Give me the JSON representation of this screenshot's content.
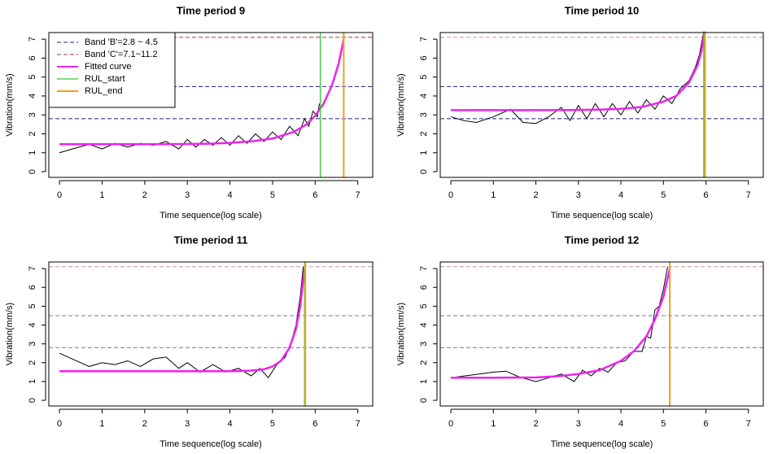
{
  "chart_data": [
    {
      "type": "line",
      "title": "Time period 9",
      "xlabel": "Time sequence(log scale)",
      "ylabel": "Vibration(mm/s)",
      "xlim": [
        -0.25,
        7.35
      ],
      "ylim": [
        -0.3,
        7.35
      ],
      "xticks": [
        0,
        1,
        2,
        3,
        4,
        5,
        6,
        7
      ],
      "yticks": [
        0,
        1,
        2,
        3,
        4,
        5,
        6,
        7
      ],
      "legend": "top-left",
      "series": [
        {
          "color": "#000000",
          "x": [
            0,
            0.3,
            0.7,
            1,
            1.3,
            1.6,
            1.9,
            2.2,
            2.5,
            2.8,
            3.0,
            3.2,
            3.4,
            3.6,
            3.8,
            4.0,
            4.2,
            4.4,
            4.6,
            4.8,
            5.0,
            5.2,
            5.4,
            5.6,
            5.75,
            5.85,
            5.95,
            6.05,
            6.1
          ],
          "values": [
            1.0,
            1.2,
            1.45,
            1.2,
            1.5,
            1.3,
            1.5,
            1.4,
            1.6,
            1.2,
            1.7,
            1.3,
            1.7,
            1.4,
            1.8,
            1.4,
            1.9,
            1.5,
            2.0,
            1.6,
            2.1,
            1.7,
            2.4,
            1.9,
            2.8,
            2.4,
            3.2,
            2.9,
            3.6
          ]
        },
        {
          "name": "Fitted curve",
          "color": "#ee22ee",
          "x": [
            0,
            1,
            2,
            3,
            3.5,
            4,
            4.5,
            5,
            5.5,
            5.8,
            6,
            6.2,
            6.4,
            6.55,
            6.67
          ],
          "values": [
            1.45,
            1.45,
            1.45,
            1.46,
            1.48,
            1.52,
            1.6,
            1.75,
            2.1,
            2.5,
            2.95,
            3.6,
            4.6,
            5.7,
            7.0
          ]
        }
      ],
      "bands": [
        {
          "name": "Band 'B'=2.8 ~ 4.5",
          "color": "#1f1f7a",
          "values": [
            2.8,
            4.5
          ]
        },
        {
          "name": "Band 'C'=7.1~11.2",
          "color": "#b03030",
          "values": [
            7.1
          ]
        }
      ],
      "vlines": [
        {
          "name": "RUL_start",
          "color": "#33cc33",
          "value": 6.12
        },
        {
          "name": "RUL_end",
          "color": "#f0a020",
          "value": 6.67
        }
      ]
    },
    {
      "type": "line",
      "title": "Time period 10",
      "xlabel": "Time sequence(log scale)",
      "ylabel": "Vibration(mm/s)",
      "xlim": [
        -0.25,
        7.35
      ],
      "ylim": [
        -0.3,
        7.35
      ],
      "xticks": [
        0,
        1,
        2,
        3,
        4,
        5,
        6,
        7
      ],
      "yticks": [
        0,
        1,
        2,
        3,
        4,
        5,
        6,
        7
      ],
      "series": [
        {
          "color": "#000000",
          "x": [
            0,
            0.3,
            0.6,
            1,
            1.4,
            1.7,
            2,
            2.3,
            2.6,
            2.8,
            3,
            3.2,
            3.4,
            3.6,
            3.8,
            4,
            4.2,
            4.4,
            4.6,
            4.8,
            5,
            5.2,
            5.4,
            5.6,
            5.75,
            5.85,
            5.95
          ],
          "values": [
            2.9,
            2.7,
            2.6,
            2.9,
            3.3,
            2.6,
            2.55,
            2.9,
            3.4,
            2.7,
            3.5,
            2.8,
            3.6,
            2.9,
            3.6,
            3.0,
            3.7,
            3.1,
            3.8,
            3.3,
            4.0,
            3.6,
            4.4,
            4.8,
            5.5,
            6.2,
            7.4
          ]
        },
        {
          "color": "#ee22ee",
          "x": [
            0,
            1,
            2,
            3,
            3.5,
            4,
            4.5,
            5,
            5.3,
            5.6,
            5.8,
            5.9,
            5.97
          ],
          "values": [
            3.25,
            3.25,
            3.25,
            3.26,
            3.28,
            3.32,
            3.42,
            3.7,
            4.0,
            4.7,
            5.6,
            6.4,
            7.4
          ]
        }
      ],
      "bands": [
        {
          "color": "#1f1f7a",
          "values": [
            2.8,
            4.5
          ]
        },
        {
          "color": "#d09090",
          "values": [
            7.1
          ]
        }
      ],
      "vlines": [
        {
          "color": "#33cc33",
          "value": 5.95
        },
        {
          "color": "#f0a020",
          "value": 5.98
        }
      ]
    },
    {
      "type": "line",
      "title": "Time period 11",
      "xlabel": "Time sequence(log scale)",
      "ylabel": "Vibration(mm/s)",
      "xlim": [
        -0.25,
        7.35
      ],
      "ylim": [
        -0.3,
        7.35
      ],
      "xticks": [
        0,
        1,
        2,
        3,
        4,
        5,
        6,
        7
      ],
      "yticks": [
        0,
        1,
        2,
        3,
        4,
        5,
        6,
        7
      ],
      "series": [
        {
          "color": "#000000",
          "x": [
            0,
            0.3,
            0.7,
            1,
            1.3,
            1.6,
            1.9,
            2.2,
            2.5,
            2.8,
            3,
            3.3,
            3.6,
            3.9,
            4.2,
            4.5,
            4.7,
            4.9,
            5.1,
            5.3,
            5.45,
            5.55,
            5.65,
            5.72
          ],
          "values": [
            2.5,
            2.2,
            1.8,
            2.0,
            1.9,
            2.1,
            1.8,
            2.2,
            2.3,
            1.7,
            2.0,
            1.5,
            1.9,
            1.5,
            1.7,
            1.3,
            1.7,
            1.2,
            1.9,
            2.3,
            3.2,
            4.0,
            5.5,
            7.1
          ]
        },
        {
          "color": "#ee22ee",
          "x": [
            0,
            1,
            2,
            3,
            4,
            4.5,
            4.8,
            5,
            5.2,
            5.4,
            5.55,
            5.65,
            5.75
          ],
          "values": [
            1.55,
            1.55,
            1.55,
            1.55,
            1.55,
            1.58,
            1.65,
            1.8,
            2.1,
            2.8,
            3.8,
            5.0,
            7.0
          ]
        }
      ],
      "bands": [
        {
          "color": "#7070a8",
          "values": [
            2.8,
            4.5
          ]
        },
        {
          "color": "#d09090",
          "values": [
            7.1
          ]
        }
      ],
      "vlines": [
        {
          "color": "#33cc33",
          "value": 5.75
        },
        {
          "color": "#f0a020",
          "value": 5.77
        }
      ]
    },
    {
      "type": "line",
      "title": "Time period 12",
      "xlabel": "Time sequence(log scale)",
      "ylabel": "Vibration(mm/s)",
      "xlim": [
        -0.25,
        7.35
      ],
      "ylim": [
        -0.3,
        7.35
      ],
      "xticks": [
        0,
        1,
        2,
        3,
        4,
        5,
        6,
        7
      ],
      "yticks": [
        0,
        1,
        2,
        3,
        4,
        5,
        6,
        7
      ],
      "series": [
        {
          "color": "#000000",
          "x": [
            0,
            0.5,
            1,
            1.3,
            1.6,
            2,
            2.3,
            2.6,
            2.9,
            3.1,
            3.3,
            3.5,
            3.7,
            3.9,
            4.1,
            4.3,
            4.5,
            4.6,
            4.7,
            4.8,
            4.9,
            5.0,
            5.1
          ],
          "values": [
            1.2,
            1.35,
            1.5,
            1.55,
            1.25,
            1.0,
            1.2,
            1.4,
            1.0,
            1.6,
            1.3,
            1.7,
            1.5,
            2.0,
            2.1,
            2.6,
            2.6,
            3.4,
            3.3,
            4.8,
            5.0,
            5.9,
            7.1
          ]
        },
        {
          "color": "#ee22ee",
          "x": [
            0,
            1,
            2,
            2.5,
            3,
            3.5,
            4,
            4.3,
            4.6,
            4.8,
            5,
            5.15
          ],
          "values": [
            1.2,
            1.2,
            1.22,
            1.28,
            1.4,
            1.6,
            2.1,
            2.6,
            3.4,
            4.3,
            5.5,
            7.0
          ]
        }
      ],
      "bands": [
        {
          "color": "#7070a8",
          "values": [
            2.8,
            4.5
          ]
        },
        {
          "color": "#d09090",
          "values": [
            7.1
          ]
        }
      ],
      "vlines": [
        {
          "color": "#f0a020",
          "value": 5.15
        }
      ]
    }
  ]
}
